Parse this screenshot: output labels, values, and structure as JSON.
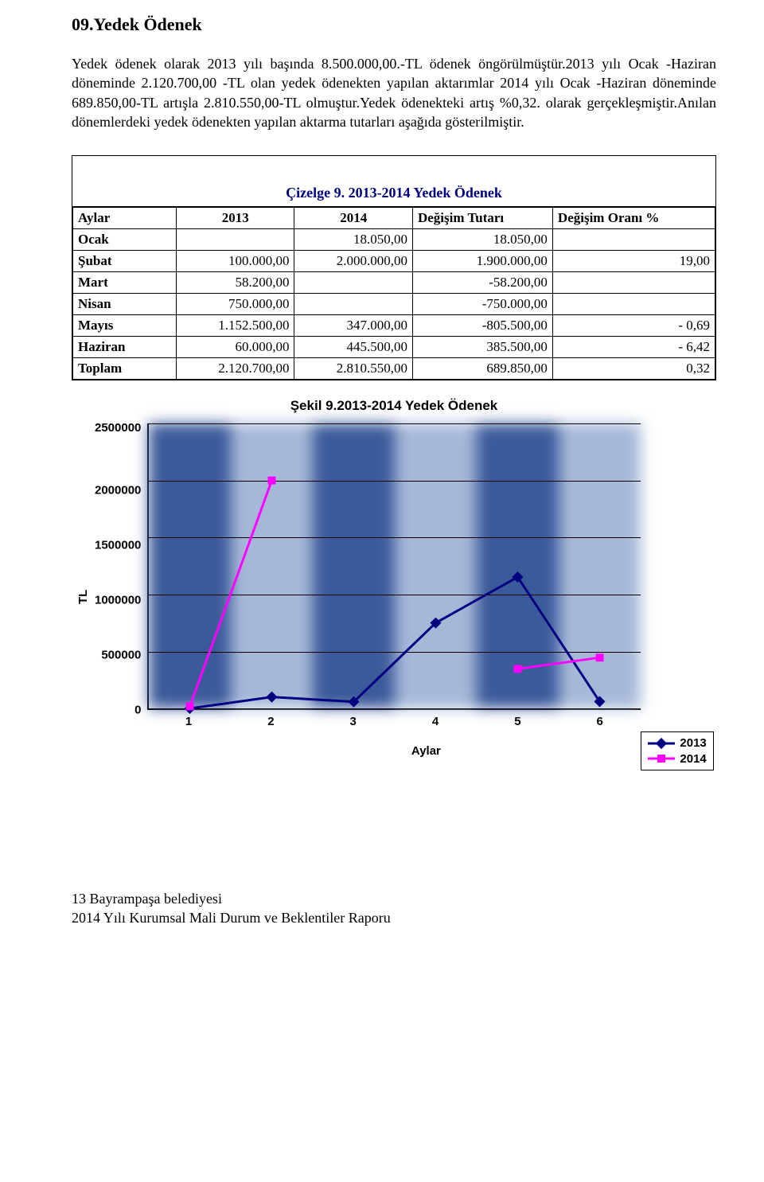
{
  "section": {
    "title": "09.Yedek Ödenek",
    "paragraph": "Yedek ödenek olarak 2013 yılı başında 8.500.000,00.-TL ödenek öngörülmüştür.2013 yılı Ocak -Haziran döneminde 2.120.700,00 -TL olan yedek ödenekten yapılan aktarımlar 2014 yılı Ocak -Haziran döneminde 689.850,00-TL artışla 2.810.550,00-TL olmuştur.Yedek ödenekteki artış %0,32. olarak gerçekleşmiştir.Anılan dönemlerdeki yedek ödenekten yapılan aktarma tutarları aşağıda gösterilmiştir."
  },
  "table": {
    "caption": "Çizelge 9. 2013-2014 Yedek Ödenek",
    "headers": [
      "Aylar",
      "2013",
      "2014",
      "Değişim Tutarı",
      "Değişim Oranı %"
    ],
    "rows": [
      {
        "label": "Ocak",
        "c2013": "",
        "c2014": "18.050,00",
        "diff": "18.050,00",
        "pct": ""
      },
      {
        "label": "Şubat",
        "c2013": "100.000,00",
        "c2014": "2.000.000,00",
        "diff": "1.900.000,00",
        "pct": "19,00"
      },
      {
        "label": "Mart",
        "c2013": "58.200,00",
        "c2014": "",
        "diff": "-58.200,00",
        "pct": ""
      },
      {
        "label": "Nisan",
        "c2013": "750.000,00",
        "c2014": "",
        "diff": "-750.000,00",
        "pct": ""
      },
      {
        "label": "Mayıs",
        "c2013": "1.152.500,00",
        "c2014": "347.000,00",
        "diff": "-805.500,00",
        "pct": "- 0,69"
      },
      {
        "label": "Haziran",
        "c2013": "60.000,00",
        "c2014": "445.500,00",
        "diff": "385.500,00",
        "pct": "- 6,42"
      },
      {
        "label": "Toplam",
        "c2013": "2.120.700,00",
        "c2014": "2.810.550,00",
        "diff": "689.850,00",
        "pct": "0,32"
      }
    ]
  },
  "chart": {
    "title": "Şekil 9.2013-2014 Yedek Ödenek",
    "type": "line",
    "y_label": "TL",
    "x_label": "Aylar",
    "x_categories": [
      "1",
      "2",
      "3",
      "4",
      "5",
      "6"
    ],
    "y_ticks": [
      "2500000",
      "2000000",
      "1500000",
      "1000000",
      "500000",
      "0"
    ],
    "ylim": [
      0,
      2500000
    ],
    "series": [
      {
        "name": "2013",
        "color": "#000080",
        "marker": "diamond",
        "line_width": 3,
        "values": [
          0,
          100000,
          58200,
          750000,
          1152500,
          60000
        ]
      },
      {
        "name": "2014",
        "color": "#ff00ff",
        "marker": "square",
        "line_width": 3,
        "values": [
          18050,
          2000000,
          null,
          null,
          347000,
          445500
        ]
      }
    ],
    "plot_bg_colors": [
      "#3b5a9a",
      "#a6b8d8"
    ],
    "grid_color": "#000000",
    "font_family": "Arial"
  },
  "footer": {
    "page": "13",
    "line1": "Bayrampaşa belediyesi",
    "line2": "2014 Yılı Kurumsal Mali Durum ve Beklentiler Raporu"
  }
}
